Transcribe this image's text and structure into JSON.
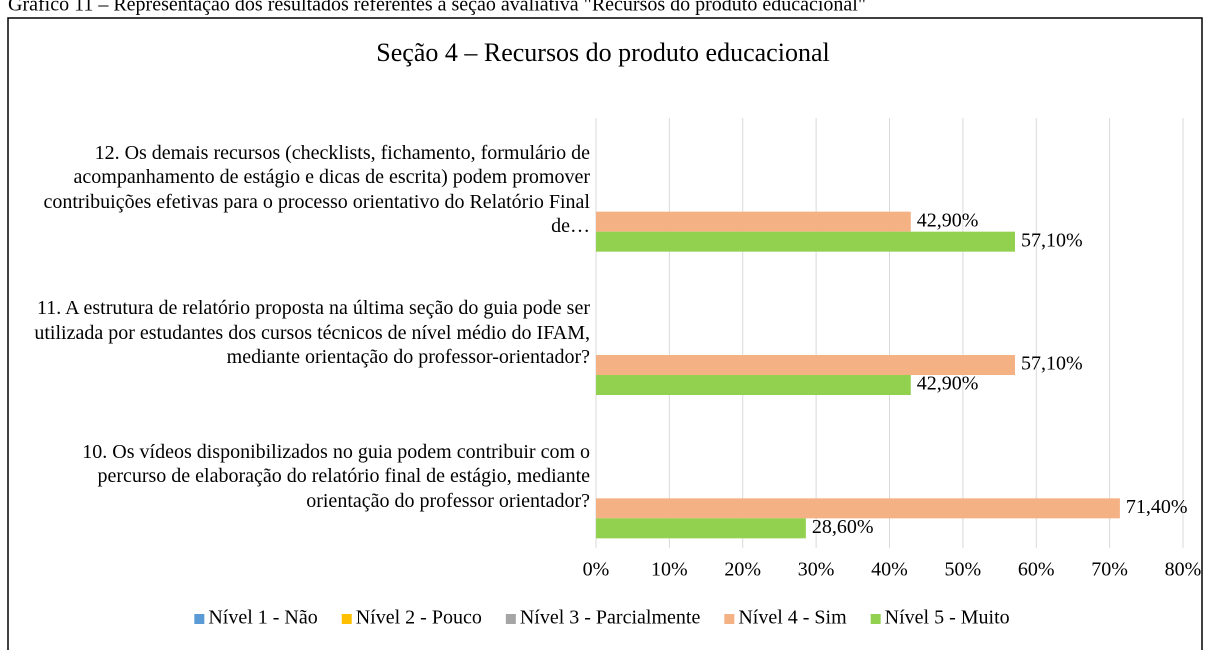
{
  "chart_data": {
    "type": "hbar",
    "caption": "Gráfico 11 – Representação dos resultados referentes à seção avaliativa \"Recursos do produto educacional\"",
    "title": "Seção 4 – Recursos do produto educacional",
    "categories": [
      "12. Os demais recursos (checklists, fichamento, formulário de acompanhamento de estágio e dicas de escrita) podem promover contribuições efetivas para o processo orientativo do Relatório Final de…",
      "11. A estrutura de relatório proposta na última seção do guia pode ser utilizada por estudantes dos cursos técnicos de nível médio do IFAM, mediante orientação do professor-orientador?",
      "10. Os vídeos disponibilizados no guia podem contribuir com o percurso de elaboração do relatório final de estágio, mediante orientação do professor orientador?"
    ],
    "series": [
      {
        "name": "Nível 1 - Não",
        "color": "#5b9bd5",
        "values": [
          0,
          0,
          0
        ]
      },
      {
        "name": "Nível 2 - Pouco",
        "color": "#ffc000",
        "values": [
          0,
          0,
          0
        ]
      },
      {
        "name": "Nível 3 - Parcialmente",
        "color": "#a5a5a5",
        "values": [
          0,
          0,
          0
        ]
      },
      {
        "name": "Nível 4 - Sim",
        "color": "#f4b183",
        "values": [
          42.9,
          57.1,
          71.4
        ],
        "value_labels": [
          "42,90%",
          "57,10%",
          "71,40%"
        ]
      },
      {
        "name": "Nível 5 - Muito",
        "color": "#92d050",
        "values": [
          57.1,
          42.9,
          28.6
        ],
        "value_labels": [
          "57,10%",
          "42,90%",
          "28,60%"
        ]
      }
    ],
    "xlim": [
      0,
      80
    ],
    "xticks": [
      {
        "value": 0,
        "label": "0%"
      },
      {
        "value": 10,
        "label": "10%"
      },
      {
        "value": 20,
        "label": "20%"
      },
      {
        "value": 30,
        "label": "30%"
      },
      {
        "value": 40,
        "label": "40%"
      },
      {
        "value": 50,
        "label": "50%"
      },
      {
        "value": 60,
        "label": "60%"
      },
      {
        "value": 70,
        "label": "70%"
      },
      {
        "value": 80,
        "label": "80%"
      }
    ],
    "grid": true,
    "legend": "bottom"
  }
}
